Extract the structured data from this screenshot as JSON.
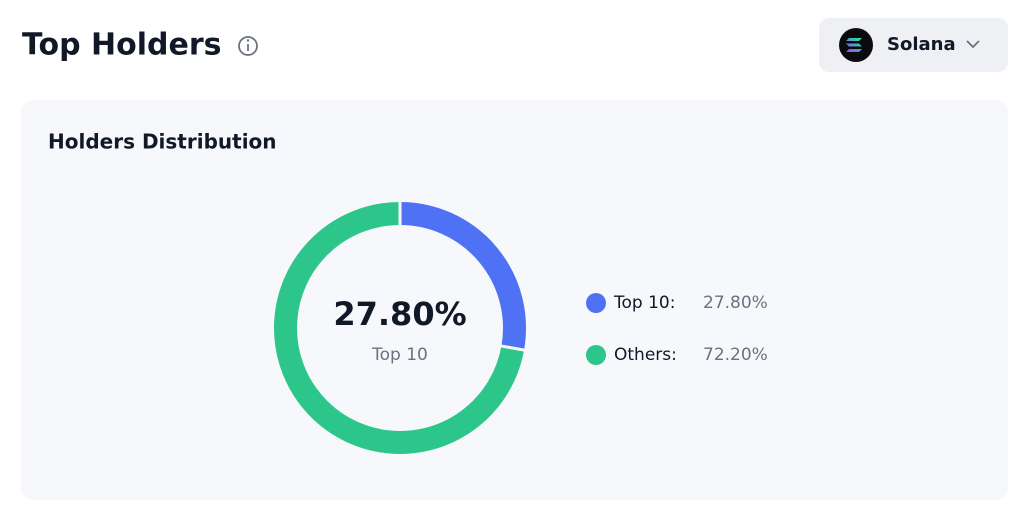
{
  "header": {
    "title": "Top Holders",
    "network": "Solana"
  },
  "chart_data": {
    "type": "donut",
    "title": "Holders Distribution",
    "categories": [
      "Top 10",
      "Others"
    ],
    "legend_labels": [
      "Top 10:",
      "Others:"
    ],
    "values": [
      27.8,
      72.2
    ],
    "value_labels": [
      "27.80%",
      "72.20%"
    ],
    "colors": [
      "#4f72f5",
      "#2cc68a"
    ]
  }
}
